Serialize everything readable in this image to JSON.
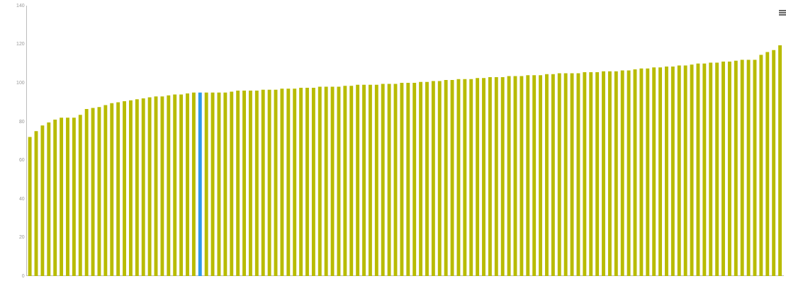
{
  "chart_data": {
    "type": "bar",
    "categories": [
      null,
      null,
      null,
      null,
      null,
      null,
      null,
      null,
      null,
      null,
      null,
      null,
      null,
      null,
      null,
      null,
      null,
      null,
      null,
      null,
      null,
      null,
      null,
      null,
      null,
      null,
      null,
      null,
      null,
      null,
      null,
      null,
      null,
      null,
      null,
      null,
      null,
      null,
      null,
      null,
      null,
      null,
      null,
      null,
      null,
      null,
      null,
      null,
      null,
      null,
      null,
      null,
      null,
      null,
      null,
      null,
      null,
      null,
      null,
      null,
      null,
      null,
      null,
      null,
      null,
      null,
      null,
      null,
      null,
      null,
      null,
      null,
      null,
      null,
      null,
      null,
      null,
      null,
      null,
      null,
      null,
      null,
      null,
      null,
      null,
      null,
      null,
      null,
      null,
      null,
      null,
      null,
      null,
      null,
      null,
      null,
      null,
      null,
      null,
      null,
      null,
      null,
      null,
      null,
      null,
      null,
      null,
      null,
      null,
      null,
      null,
      null,
      null,
      null,
      null,
      null,
      null,
      null,
      null,
      null
    ],
    "values": [
      72,
      75,
      78,
      79.5,
      81,
      82,
      82,
      82,
      83.5,
      86.5,
      87,
      87.5,
      88.5,
      89.5,
      90,
      90.5,
      91,
      91.5,
      92,
      92.5,
      93,
      93,
      93.5,
      94,
      94,
      94.5,
      95,
      95,
      95,
      95,
      95,
      95,
      95.5,
      96,
      96,
      96,
      96,
      96.5,
      96.5,
      96.5,
      97,
      97,
      97,
      97.5,
      97.5,
      97.5,
      98,
      98,
      98,
      98,
      98.5,
      98.5,
      99,
      99,
      99,
      99,
      99.5,
      99.5,
      99.5,
      100,
      100,
      100,
      100.5,
      100.5,
      101,
      101,
      101.5,
      101.5,
      102,
      102,
      102,
      102.5,
      102.5,
      103,
      103,
      103,
      103.5,
      103.5,
      103.5,
      104,
      104,
      104,
      104.5,
      104.5,
      105,
      105,
      105,
      105,
      105.5,
      105.5,
      105.5,
      106,
      106,
      106,
      106.5,
      106.5,
      107,
      107.5,
      107.5,
      108,
      108,
      108.5,
      108.5,
      109,
      109,
      109.5,
      110,
      110,
      110.5,
      110.5,
      111,
      111,
      111.5,
      112,
      112,
      112,
      114.5,
      116,
      117,
      119.5
    ],
    "colors": [
      "#b8bb00",
      "#b8bb00",
      "#b8bb00",
      "#b8bb00",
      "#b8bb00",
      "#b8bb00",
      "#b8bb00",
      "#b8bb00",
      "#b8bb00",
      "#b8bb00",
      "#b8bb00",
      "#b8bb00",
      "#b8bb00",
      "#b8bb00",
      "#b8bb00",
      "#b8bb00",
      "#b8bb00",
      "#b8bb00",
      "#b8bb00",
      "#b8bb00",
      "#b8bb00",
      "#b8bb00",
      "#b8bb00",
      "#b8bb00",
      "#b8bb00",
      "#b8bb00",
      "#b8bb00",
      "#2f9ae8",
      "#b8bb00",
      "#b8bb00",
      "#b8bb00",
      "#b8bb00",
      "#b8bb00",
      "#b8bb00",
      "#b8bb00",
      "#b8bb00",
      "#b8bb00",
      "#b8bb00",
      "#b8bb00",
      "#b8bb00",
      "#b8bb00",
      "#b8bb00",
      "#b8bb00",
      "#b8bb00",
      "#b8bb00",
      "#b8bb00",
      "#b8bb00",
      "#b8bb00",
      "#b8bb00",
      "#b8bb00",
      "#b8bb00",
      "#b8bb00",
      "#b8bb00",
      "#b8bb00",
      "#b8bb00",
      "#b8bb00",
      "#b8bb00",
      "#b8bb00",
      "#b8bb00",
      "#b8bb00",
      "#b8bb00",
      "#b8bb00",
      "#b8bb00",
      "#b8bb00",
      "#b8bb00",
      "#b8bb00",
      "#b8bb00",
      "#b8bb00",
      "#b8bb00",
      "#b8bb00",
      "#b8bb00",
      "#b8bb00",
      "#b8bb00",
      "#b8bb00",
      "#b8bb00",
      "#b8bb00",
      "#b8bb00",
      "#b8bb00",
      "#b8bb00",
      "#b8bb00",
      "#b8bb00",
      "#b8bb00",
      "#b8bb00",
      "#b8bb00",
      "#b8bb00",
      "#b8bb00",
      "#b8bb00",
      "#b8bb00",
      "#b8bb00",
      "#b8bb00",
      "#b8bb00",
      "#b8bb00",
      "#b8bb00",
      "#b8bb00",
      "#b8bb00",
      "#b8bb00",
      "#b8bb00",
      "#b8bb00",
      "#b8bb00",
      "#b8bb00",
      "#b8bb00",
      "#b8bb00",
      "#b8bb00",
      "#b8bb00",
      "#b8bb00",
      "#b8bb00",
      "#b8bb00",
      "#b8bb00",
      "#b8bb00",
      "#b8bb00",
      "#b8bb00",
      "#b8bb00",
      "#b8bb00",
      "#b8bb00",
      "#b8bb00",
      "#b8bb00",
      "#b8bb00",
      "#b8bb00",
      "#b8bb00",
      "#b8bb00"
    ],
    "ylim": [
      0,
      140
    ],
    "yticks": [
      0,
      20,
      40,
      60,
      80,
      100,
      120,
      140
    ],
    "grid": false,
    "legend": false
  }
}
